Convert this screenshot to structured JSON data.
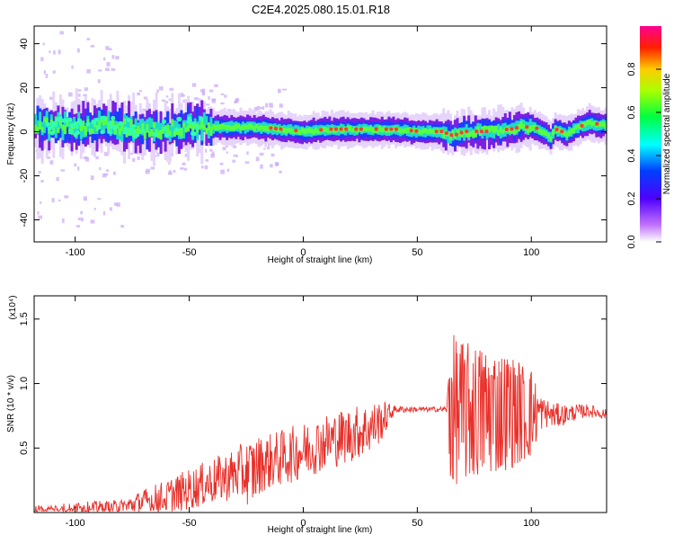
{
  "title": "C2E4.2025.080.15.01.R18",
  "colors": {
    "snr_line": "#e8302a",
    "axis": "#000000",
    "spectrogram_band": "#ff3b3b"
  },
  "chart_data": [
    {
      "type": "heatmap",
      "title": "C2E4.2025.080.15.01.R18",
      "xlabel": "Height of straight line (km)",
      "ylabel": "Frequency (Hz)",
      "xlim": [
        -118,
        133
      ],
      "ylim": [
        -50,
        48
      ],
      "xticks": [
        -100,
        -50,
        0,
        50,
        100
      ],
      "yticks": [
        -40,
        -20,
        0,
        20,
        40
      ],
      "grid": false,
      "colorbar": {
        "label": "Normalized spectral amplitude",
        "range": [
          0,
          1
        ],
        "ticks": [
          "0.0",
          "0.2",
          "0.4",
          "0.6",
          "0.8"
        ],
        "colormap": "rainbow"
      },
      "dominant_frequency_track": {
        "x": [
          -115,
          -100,
          -90,
          -80,
          -70,
          -60,
          -50,
          -40,
          -30,
          -20,
          -10,
          0,
          10,
          20,
          30,
          40,
          50,
          60,
          65,
          70,
          80,
          90,
          95,
          100,
          105,
          108,
          110,
          115,
          120,
          125,
          130,
          133
        ],
        "y": [
          3,
          2,
          3,
          2,
          1,
          1,
          3,
          2,
          2,
          2,
          1,
          0,
          1,
          1,
          1,
          1,
          0,
          0,
          -2,
          0,
          0,
          1,
          2,
          2,
          0,
          -3,
          1,
          -1,
          2,
          4,
          3,
          3
        ]
      }
    },
    {
      "type": "line",
      "xlabel": "Height of straight line (km)",
      "ylabel": "SNR (10 * v/v)",
      "y_multiplier": "(x10⁴)",
      "xlim": [
        -118,
        133
      ],
      "ylim": [
        0,
        1.68
      ],
      "xticks": [
        -100,
        -50,
        0,
        50,
        100
      ],
      "yticks": [
        "0.5",
        "1.0",
        "1.5"
      ],
      "grid": false,
      "series": [
        {
          "envelope_x": [
            -118,
            -100,
            -80,
            -70,
            -60,
            -50,
            -40,
            -30,
            -22,
            -18,
            -10,
            0,
            10,
            20,
            30,
            35,
            40,
            50,
            60,
            63,
            64,
            70,
            80,
            90,
            100,
            105,
            110,
            115,
            120,
            125,
            133
          ],
          "baseline": [
            0.02,
            0.03,
            0.04,
            0.08,
            0.12,
            0.18,
            0.24,
            0.3,
            0.32,
            0.38,
            0.42,
            0.48,
            0.55,
            0.6,
            0.66,
            0.72,
            0.8,
            0.8,
            0.8,
            0.8,
            0.8,
            0.78,
            0.78,
            0.78,
            0.77,
            0.78,
            0.75,
            0.76,
            0.78,
            0.79,
            0.76
          ],
          "amplitude": [
            0.04,
            0.05,
            0.06,
            0.1,
            0.14,
            0.16,
            0.18,
            0.2,
            0.28,
            0.22,
            0.22,
            0.22,
            0.22,
            0.22,
            0.2,
            0.15,
            0.03,
            0.02,
            0.02,
            0.03,
            0.6,
            0.55,
            0.5,
            0.45,
            0.35,
            0.12,
            0.1,
            0.08,
            0.06,
            0.05,
            0.04
          ]
        }
      ]
    }
  ]
}
